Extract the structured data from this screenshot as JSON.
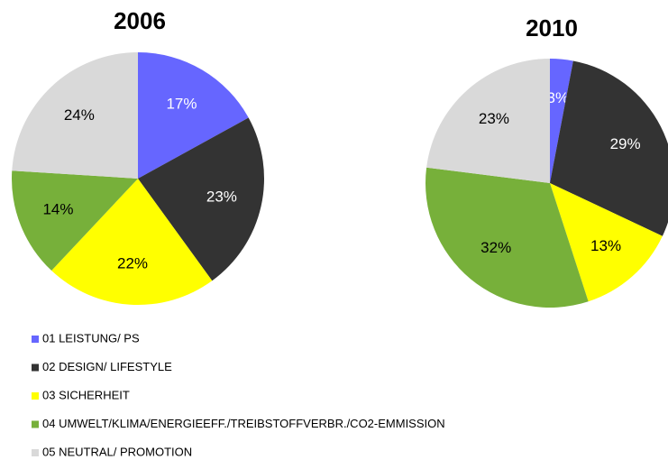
{
  "chart_data": [
    {
      "type": "pie",
      "title": "2006",
      "values": [
        17,
        23,
        22,
        14,
        24
      ],
      "value_labels": [
        "17%",
        "23%",
        "22%",
        "14%",
        "24%"
      ]
    },
    {
      "type": "pie",
      "title": "2010",
      "values": [
        3,
        29,
        13,
        32,
        23
      ],
      "value_labels": [
        "3%",
        "29%",
        "13%",
        "32%",
        "23%"
      ]
    }
  ],
  "legend": {
    "labels": [
      "01 LEISTUNG/ PS",
      "02 DESIGN/ LIFESTYLE",
      "03 SICHERHEIT",
      "04 UMWELT/KLIMA/ENERGIEEFF./TREIBSTOFFVERBR./CO2-EMMISSION",
      "05 NEUTRAL/ PROMOTION"
    ],
    "colors": [
      "#6666ff",
      "#333333",
      "#ffff00",
      "#77b03a",
      "#d9d9d9"
    ]
  }
}
